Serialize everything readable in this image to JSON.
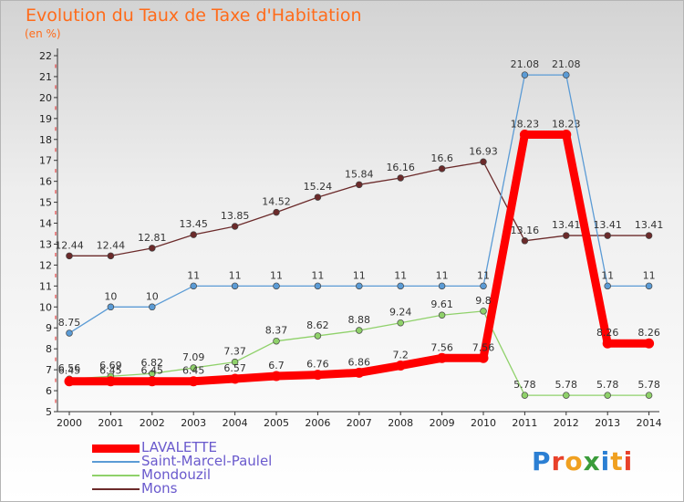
{
  "header": {
    "title": "Evolution du Taux de Taxe d'Habitation",
    "unit": "(en %)"
  },
  "brand": {
    "text": "Proxiti",
    "letter_colors": [
      "#2b7fd3",
      "#e8412a",
      "#f0a020",
      "#3a9c3a",
      "#2b7fd3",
      "#f0a020",
      "#e8412a"
    ]
  },
  "chart_data": {
    "type": "line",
    "title": "Evolution du Taux de Taxe d'Habitation",
    "subtitle": "(en %)",
    "xlabel": "",
    "ylabel": "",
    "x": [
      "2000",
      "2001",
      "2002",
      "2003",
      "2004",
      "2005",
      "2006",
      "2007",
      "2008",
      "2009",
      "2010",
      "2011",
      "2012",
      "2013",
      "2014"
    ],
    "ylim": [
      5,
      22
    ],
    "yticks": [
      5,
      6,
      7,
      8,
      9,
      10,
      11,
      12,
      13,
      14,
      15,
      16,
      17,
      18,
      19,
      20,
      21,
      22
    ],
    "grid": false,
    "legend_position": "bottom-left",
    "series": [
      {
        "name": "LAVALETTE",
        "color": "#ff0000",
        "values": [
          6.45,
          6.45,
          6.45,
          6.45,
          6.57,
          6.7,
          6.76,
          6.86,
          7.2,
          7.56,
          7.56,
          18.23,
          18.23,
          8.26,
          8.26
        ],
        "labels": [
          "6.45",
          "6.45",
          "6.45",
          "6.45",
          "6.57",
          "6.7",
          "6.76",
          "6.86",
          "7.2",
          "7.56",
          "7.56",
          "18.23",
          "18.23",
          "8.26",
          "8.26"
        ]
      },
      {
        "name": "Saint-Marcel-Paulel",
        "color": "#5b9bd5",
        "values": [
          8.75,
          10,
          10,
          11,
          11,
          11,
          11,
          11,
          11,
          11,
          11,
          21.08,
          21.08,
          11,
          11
        ],
        "labels": [
          "8.75",
          "10",
          "10",
          "11",
          "11",
          "11",
          "11",
          "11",
          "11",
          "11",
          "11",
          "21.08",
          "21.08",
          "11",
          "11"
        ]
      },
      {
        "name": "Mondouzil",
        "color": "#8fd16a",
        "values": [
          6.56,
          6.69,
          6.82,
          7.09,
          7.37,
          8.37,
          8.62,
          8.88,
          9.24,
          9.61,
          9.8,
          5.78,
          5.78,
          5.78,
          5.78
        ],
        "labels": [
          "6.56",
          "6.69",
          "6.82",
          "7.09",
          "7.37",
          "8.37",
          "8.62",
          "8.88",
          "9.24",
          "9.61",
          "9.8",
          "5.78",
          "5.78",
          "5.78",
          "5.78"
        ]
      },
      {
        "name": "Mons",
        "color": "#6b2a2a",
        "values": [
          12.44,
          12.44,
          12.81,
          13.45,
          13.85,
          14.52,
          15.24,
          15.84,
          16.16,
          16.6,
          16.93,
          13.16,
          13.41,
          13.41,
          13.41
        ],
        "labels": [
          "12.44",
          "12.44",
          "12.81",
          "13.45",
          "13.85",
          "14.52",
          "15.24",
          "15.84",
          "16.16",
          "16.6",
          "16.93",
          "13.16",
          "13.41",
          "13.41",
          "13.41"
        ]
      }
    ]
  }
}
